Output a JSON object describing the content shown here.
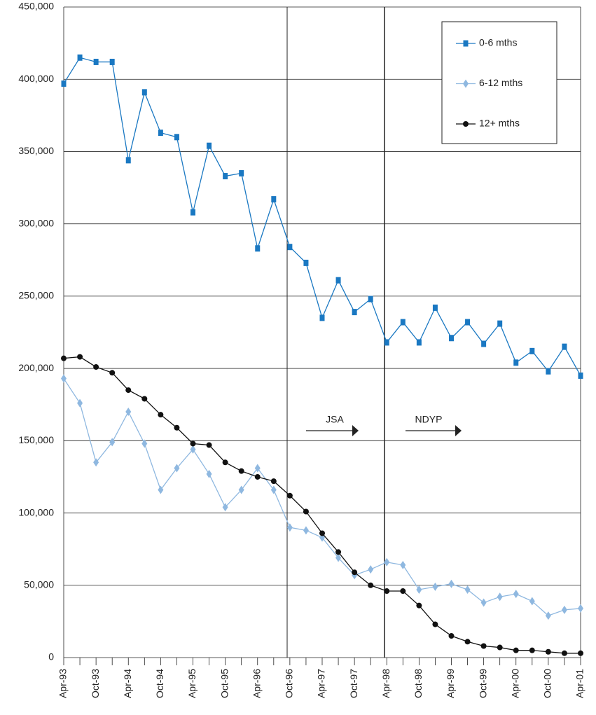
{
  "chart_data": {
    "type": "line",
    "categories": [
      "Apr-93",
      null,
      "Oct-93",
      null,
      "Apr-94",
      null,
      "Oct-94",
      null,
      "Apr-95",
      null,
      "Oct-95",
      null,
      "Apr-96",
      null,
      "Oct-96",
      null,
      "Apr-97",
      null,
      "Oct-97",
      null,
      "Apr-98",
      null,
      "Oct-98",
      null,
      "Apr-99",
      null,
      "Oct-99",
      null,
      "Apr-00",
      null,
      "Oct-00",
      null,
      "Apr-01"
    ],
    "series": [
      {
        "name": "0-6 mths",
        "color": "#1a78c2",
        "marker": "square",
        "values": [
          397000,
          415000,
          412000,
          412000,
          344000,
          391000,
          363000,
          360000,
          308000,
          354000,
          333000,
          335000,
          283000,
          317000,
          284000,
          273000,
          235000,
          261000,
          239000,
          248000,
          218000,
          232000,
          218000,
          242000,
          221000,
          232000,
          217000,
          231000,
          204000,
          212000,
          198000,
          215000,
          195000
        ]
      },
      {
        "name": "6-12 mths",
        "color": "#8fb8e0",
        "marker": "diamond",
        "values": [
          193000,
          176000,
          135000,
          149000,
          170000,
          148000,
          116000,
          131000,
          144000,
          127000,
          104000,
          116000,
          131000,
          116000,
          90000,
          88000,
          83000,
          69000,
          57000,
          61000,
          66000,
          64000,
          47000,
          49000,
          51000,
          47000,
          38000,
          42000,
          44000,
          39000,
          29000,
          33000,
          34000
        ]
      },
      {
        "name": "12+ mths",
        "color": "#111111",
        "marker": "circle",
        "values": [
          207000,
          208000,
          201000,
          197000,
          185000,
          179000,
          168000,
          159000,
          148000,
          147000,
          135000,
          129000,
          125000,
          122000,
          112000,
          101000,
          86000,
          73000,
          59000,
          50000,
          46000,
          46000,
          36000,
          23000,
          15000,
          11000,
          8000,
          7000,
          5000,
          5000,
          4000,
          3000,
          3000
        ]
      }
    ],
    "ylim": [
      0,
      450000
    ],
    "yticks": [
      0,
      {
        "value": 50000,
        "label": "50,000"
      },
      {
        "value": 100000,
        "label": "100,000"
      },
      {
        "value": 150000,
        "label": "150,000"
      },
      {
        "value": 200000,
        "label": "200,000"
      },
      {
        "value": 250000,
        "label": "250,000"
      },
      {
        "value": 300000,
        "label": "300,000"
      },
      {
        "value": 350000,
        "label": "350,000"
      },
      {
        "value": 400000,
        "label": "400,000"
      },
      {
        "value": 450000,
        "label": "450,000"
      }
    ],
    "grid": true,
    "legend": "top-right",
    "annotations": [
      "JSA",
      "NDYP"
    ]
  }
}
